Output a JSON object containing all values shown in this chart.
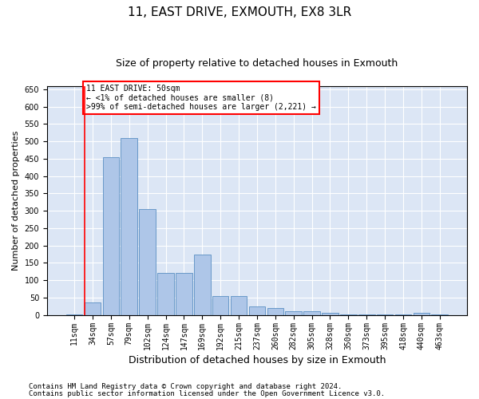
{
  "title1": "11, EAST DRIVE, EXMOUTH, EX8 3LR",
  "title2": "Size of property relative to detached houses in Exmouth",
  "xlabel": "Distribution of detached houses by size in Exmouth",
  "ylabel": "Number of detached properties",
  "categories": [
    "11sqm",
    "34sqm",
    "57sqm",
    "79sqm",
    "102sqm",
    "124sqm",
    "147sqm",
    "169sqm",
    "192sqm",
    "215sqm",
    "237sqm",
    "260sqm",
    "282sqm",
    "305sqm",
    "328sqm",
    "350sqm",
    "373sqm",
    "395sqm",
    "418sqm",
    "440sqm",
    "463sqm"
  ],
  "values": [
    2,
    35,
    455,
    510,
    305,
    120,
    120,
    175,
    55,
    55,
    25,
    20,
    10,
    10,
    5,
    2,
    2,
    2,
    2,
    5,
    2
  ],
  "bar_color": "#aec6e8",
  "bar_edge_color": "#5a8fc2",
  "vline_color": "red",
  "vline_pos": 0.555,
  "annotation_line1": "11 EAST DRIVE: 50sqm",
  "annotation_line2": "← <1% of detached houses are smaller (8)",
  "annotation_line3": ">99% of semi-detached houses are larger (2,221) →",
  "ylim": [
    0,
    660
  ],
  "yticks": [
    0,
    50,
    100,
    150,
    200,
    250,
    300,
    350,
    400,
    450,
    500,
    550,
    600,
    650
  ],
  "background_color": "#dce6f5",
  "footer1": "Contains HM Land Registry data © Crown copyright and database right 2024.",
  "footer2": "Contains public sector information licensed under the Open Government Licence v3.0.",
  "title1_fontsize": 11,
  "title2_fontsize": 9,
  "xlabel_fontsize": 9,
  "ylabel_fontsize": 8,
  "tick_fontsize": 7,
  "footer_fontsize": 6.5,
  "annot_fontsize": 7
}
